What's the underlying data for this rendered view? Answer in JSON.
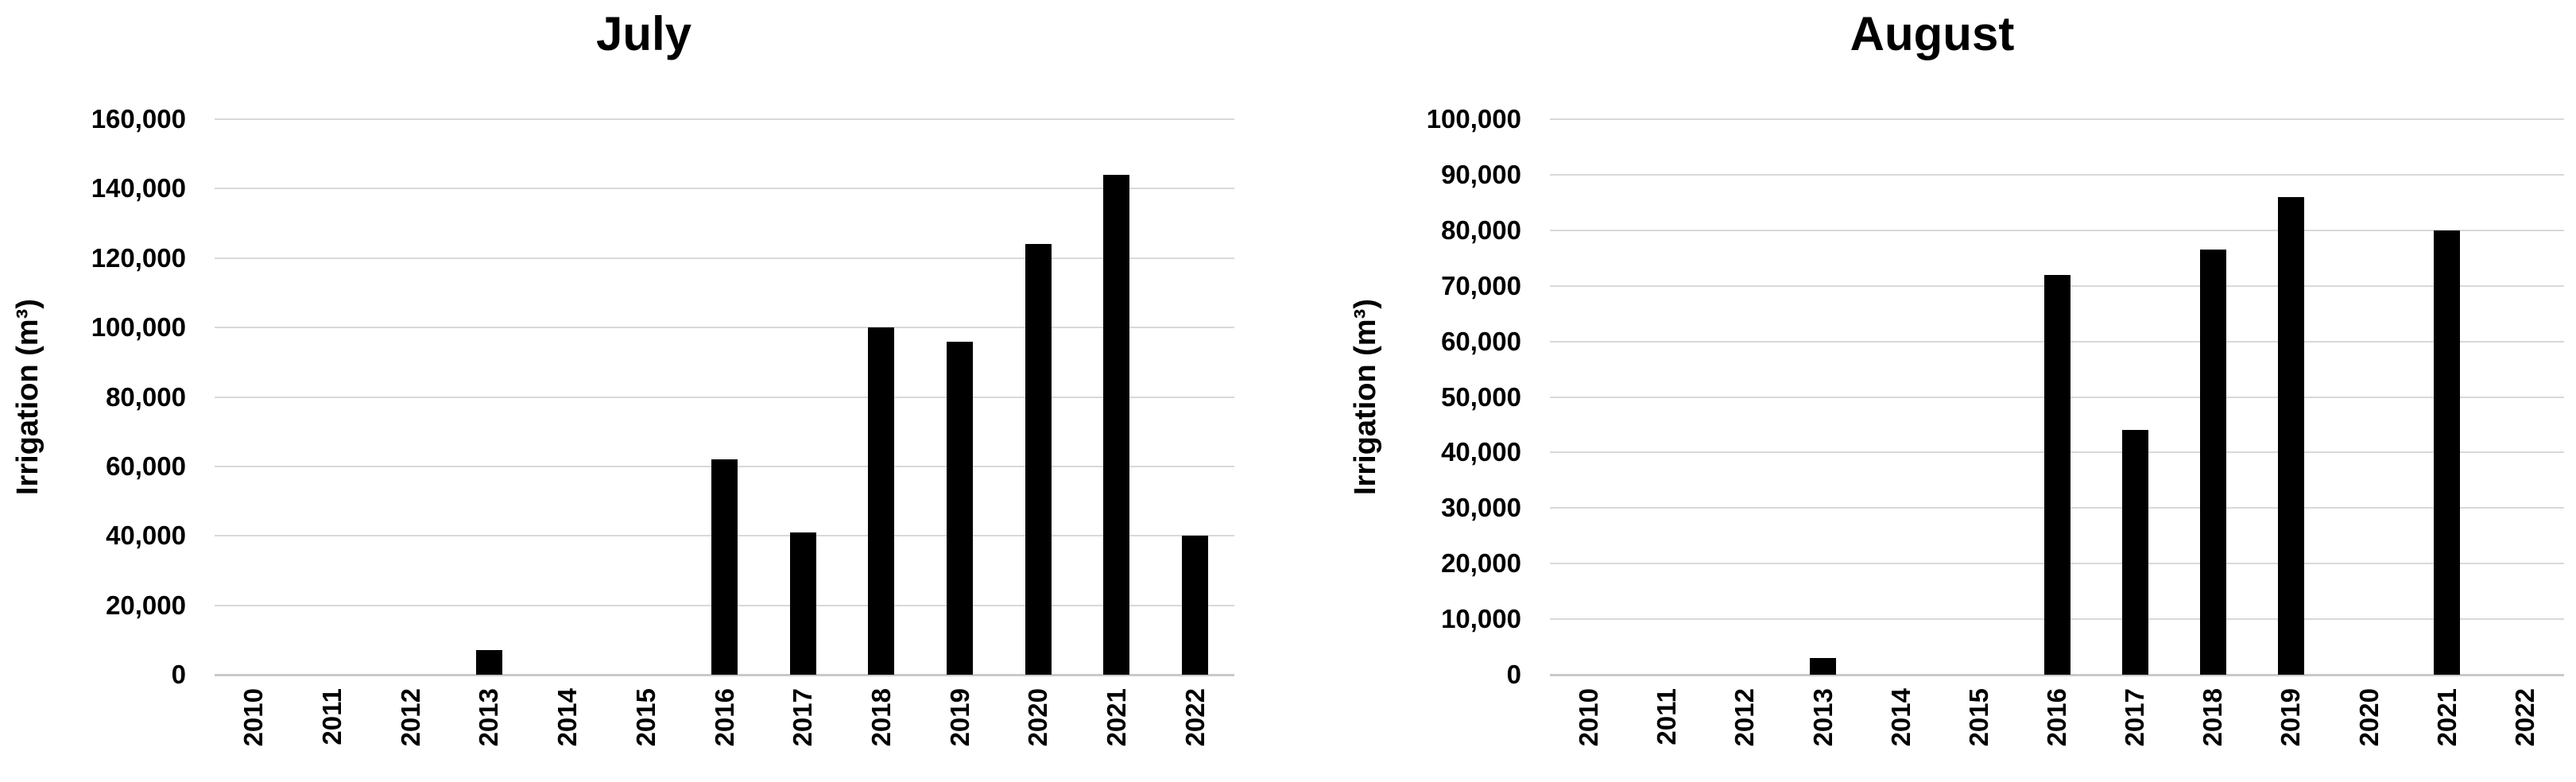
{
  "colors": {
    "bar": "#000000",
    "gridline": "#d9d9d9",
    "baseline": "#c9c9c9",
    "text": "#000000",
    "background": "#ffffff"
  },
  "chart_data": [
    {
      "type": "bar",
      "title": "July",
      "ylabel": "Irrigation (m³)",
      "xlabel": "",
      "legend": "none",
      "grid": true,
      "categories": [
        "2010",
        "2011",
        "2012",
        "2013",
        "2014",
        "2015",
        "2016",
        "2017",
        "2018",
        "2019",
        "2020",
        "2021",
        "2022"
      ],
      "values": [
        0,
        0,
        0,
        7000,
        0,
        0,
        62000,
        41000,
        100000,
        96000,
        124000,
        144000,
        40000
      ],
      "ylim": [
        0,
        160000
      ],
      "y_step": 20000
    },
    {
      "type": "bar",
      "title": "August",
      "ylabel": "Irrigation (m³)",
      "xlabel": "",
      "legend": "none",
      "grid": true,
      "categories": [
        "2010",
        "2011",
        "2012",
        "2013",
        "2014",
        "2015",
        "2016",
        "2017",
        "2018",
        "2019",
        "2020",
        "2021",
        "2022"
      ],
      "values": [
        0,
        0,
        0,
        3000,
        0,
        0,
        72000,
        44000,
        76500,
        86000,
        0,
        80000,
        0
      ],
      "ylim": [
        0,
        100000
      ],
      "y_step": 10000
    }
  ]
}
